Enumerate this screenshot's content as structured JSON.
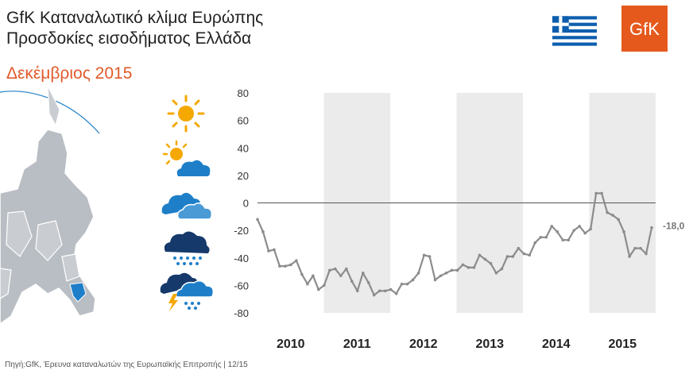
{
  "header": {
    "title_line1": "GfK Καταναλωτικό κλίμα Ευρώπης",
    "title_line2": "Προσδοκίες εισοδήματος Ελλάδα",
    "period": "Δεκέμβριος 2015"
  },
  "logo": {
    "text": "GfK",
    "color": "#e55a1c"
  },
  "flag": {
    "country": "Greece",
    "color": "#0d5eaf"
  },
  "map": {
    "highlight": "Greece",
    "highlight_color": "#1e7fc8"
  },
  "weather_icons": [
    "sun-icon",
    "sun-cloud-icon",
    "cloud-icon",
    "rain-cloud-icon",
    "storm-cloud-icon"
  ],
  "chart_data": {
    "type": "line",
    "title": "",
    "xlabel": "",
    "ylabel": "",
    "ylim": [
      -80,
      80
    ],
    "yticks": [
      "80",
      "60",
      "40",
      "20",
      "0",
      "-20",
      "-40",
      "-60",
      "-80"
    ],
    "year_labels": [
      "2010",
      "2011",
      "2012",
      "2013",
      "2014",
      "2015"
    ],
    "shaded_years": [
      "2011",
      "2013",
      "2015"
    ],
    "line_color": "#8c8c8c",
    "last_value_label": "-18,0",
    "series": [
      {
        "values": [
          -12,
          -21,
          -35,
          -34,
          -46,
          -46,
          -45,
          -42,
          -52,
          -59,
          -53,
          -63,
          -60,
          -49,
          -48,
          -53,
          -48,
          -57,
          -64,
          -51,
          -58,
          -67,
          -64,
          -64,
          -63,
          -66,
          -59,
          -59,
          -56,
          -51,
          -38,
          -39,
          -56,
          -53,
          -51,
          -49,
          -49,
          -45,
          -47,
          -47,
          -38,
          -41,
          -44,
          -51,
          -48,
          -39,
          -39,
          -33,
          -37,
          -38,
          -29,
          -25,
          -25,
          -17,
          -21,
          -27,
          -27,
          -20,
          -17,
          -22,
          -19,
          7,
          7,
          -7,
          -9,
          -12,
          -21,
          -39,
          -33,
          -33,
          -37,
          -18
        ]
      }
    ]
  },
  "source_text": "Πηγή:GfK,  Έρευνα καταναλωτών της  Ευρωπαϊκής Επιτροπής | 12/15"
}
